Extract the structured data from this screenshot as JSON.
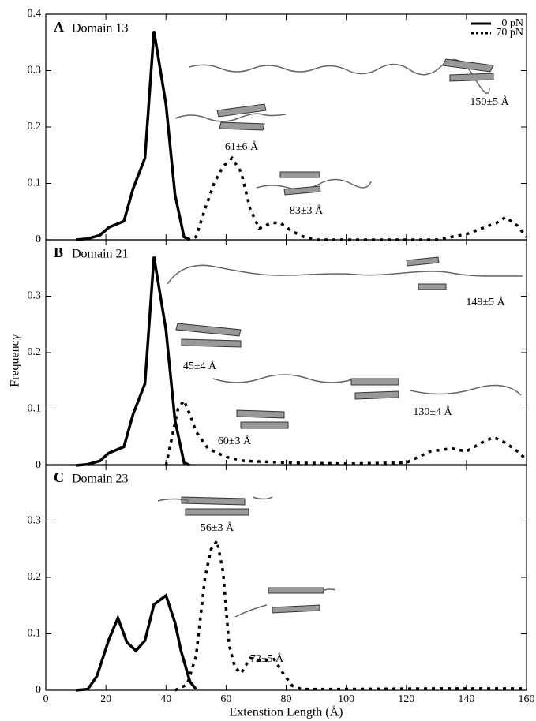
{
  "chart_data": [
    {
      "type": "line",
      "panel": "A",
      "title": "Domain 13",
      "xlim": [
        0,
        160
      ],
      "ylim": [
        0,
        0.4
      ],
      "yticks": [
        0,
        0.1,
        0.2,
        0.3,
        0.4
      ],
      "series": [
        {
          "name": "0 pN",
          "color": "#000000",
          "linestyle": "solid",
          "x": [
            10,
            14,
            18,
            21,
            26,
            29,
            33,
            36,
            40,
            43,
            46,
            48
          ],
          "values": [
            0,
            0.002,
            0.008,
            0.022,
            0.033,
            0.09,
            0.145,
            0.37,
            0.24,
            0.08,
            0.005,
            0
          ]
        },
        {
          "name": "70 pN",
          "color": "#000000",
          "linestyle": "dotted",
          "x": [
            47,
            50,
            53,
            56,
            59,
            62,
            65,
            68,
            71,
            75,
            78,
            82,
            86,
            90,
            110,
            130,
            140,
            145,
            150,
            153,
            157,
            160
          ],
          "values": [
            0,
            0.005,
            0.055,
            0.1,
            0.13,
            0.145,
            0.12,
            0.055,
            0.02,
            0.03,
            0.03,
            0.015,
            0.005,
            0,
            0,
            0,
            0.01,
            0.02,
            0.03,
            0.04,
            0.025,
            0.005
          ]
        }
      ],
      "annotations": [
        "150±5 Å",
        "61±6 Å",
        "83±3 Å"
      ],
      "legend": "upper right"
    },
    {
      "type": "line",
      "panel": "B",
      "title": "Domain 21",
      "xlim": [
        0,
        160
      ],
      "ylim": [
        0,
        0.4
      ],
      "yticks": [
        0,
        0.1,
        0.2,
        0.3
      ],
      "ylabel": "Frequency",
      "series": [
        {
          "color": "#000000",
          "linestyle": "solid",
          "x": [
            10,
            14,
            18,
            21,
            26,
            29,
            33,
            36,
            40,
            43,
            46,
            48
          ],
          "values": [
            0,
            0.002,
            0.008,
            0.022,
            0.033,
            0.09,
            0.145,
            0.37,
            0.24,
            0.08,
            0.005,
            0
          ]
        },
        {
          "color": "#000000",
          "linestyle": "dotted",
          "x": [
            40,
            42,
            44,
            46,
            48,
            50,
            54,
            60,
            66,
            80,
            100,
            120,
            128,
            135,
            140,
            145,
            149,
            153,
            157,
            160
          ],
          "values": [
            0,
            0.05,
            0.1,
            0.115,
            0.09,
            0.06,
            0.03,
            0.015,
            0.008,
            0.005,
            0.003,
            0.005,
            0.025,
            0.03,
            0.025,
            0.04,
            0.05,
            0.04,
            0.025,
            0.01
          ]
        }
      ],
      "annotations": [
        "149±5 Å",
        "45±4 Å",
        "130±4 Å",
        "60±3 Å"
      ]
    },
    {
      "type": "line",
      "panel": "C",
      "title": "Domain 23",
      "xlim": [
        0,
        160
      ],
      "ylim": [
        0,
        0.4
      ],
      "yticks": [
        0,
        0.1,
        0.2,
        0.3
      ],
      "xticks": [
        0,
        20,
        40,
        60,
        80,
        100,
        120,
        140,
        160
      ],
      "xlabel": "Extenstion Length (Å)",
      "series": [
        {
          "color": "#000000",
          "linestyle": "solid",
          "x": [
            10,
            14,
            17,
            21,
            24,
            27,
            30,
            33,
            36,
            40,
            43,
            45,
            48,
            50
          ],
          "values": [
            0,
            0.002,
            0.025,
            0.09,
            0.128,
            0.085,
            0.07,
            0.088,
            0.152,
            0.168,
            0.12,
            0.07,
            0.015,
            0.002
          ]
        },
        {
          "color": "#000000",
          "linestyle": "dotted",
          "x": [
            43,
            47,
            50,
            53,
            55,
            57,
            59,
            61,
            63,
            65,
            68,
            72,
            76,
            79,
            82,
            85,
            100,
            130,
            145,
            160
          ],
          "values": [
            0,
            0.01,
            0.06,
            0.2,
            0.25,
            0.265,
            0.21,
            0.08,
            0.04,
            0.03,
            0.057,
            0.052,
            0.055,
            0.03,
            0.008,
            0.002,
            0.002,
            0.003,
            0.003,
            0.003
          ]
        }
      ],
      "annotations": [
        "56±3 Å",
        "72±5 Å"
      ]
    }
  ]
}
